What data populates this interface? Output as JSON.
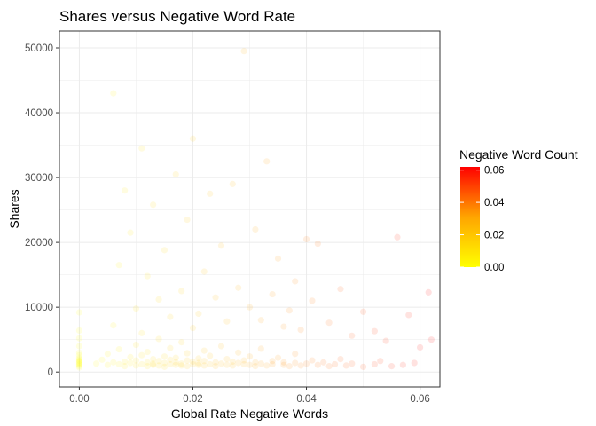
{
  "colors": {
    "gradient_low": "#ffff00",
    "gradient_mid": "#ffa500",
    "gradient_high": "#ff0000",
    "grid": "#ebebeb",
    "panel_border": "#333333"
  },
  "chart_data": {
    "type": "scatter",
    "title": "Shares versus Negative Word Rate",
    "xlabel": "Global Rate Negative Words",
    "ylabel": "Shares",
    "xlim": [
      -0.0035,
      0.0635
    ],
    "ylim": [
      -2300,
      52600
    ],
    "x_ticks": [
      0.0,
      0.02,
      0.04,
      0.06
    ],
    "x_tick_labels": [
      "0.00",
      "0.02",
      "0.04",
      "0.06"
    ],
    "y_ticks": [
      0,
      10000,
      20000,
      30000,
      40000,
      50000
    ],
    "y_tick_labels": [
      "0",
      "10000",
      "20000",
      "30000",
      "40000",
      "50000"
    ],
    "grid": true,
    "point_alpha": 0.12,
    "legend": {
      "title": "Negative Word Count",
      "position": "right",
      "type": "colorbar",
      "range": [
        0,
        0.062
      ],
      "ticks": [
        0.0,
        0.02,
        0.04,
        0.06
      ],
      "tick_labels": [
        "0.00",
        "0.02",
        "0.04",
        "0.06"
      ]
    },
    "points": [
      [
        0.0,
        1200
      ],
      [
        0.0,
        1500
      ],
      [
        0.0,
        1800
      ],
      [
        0.0,
        2200
      ],
      [
        0.0,
        900
      ],
      [
        0.0,
        3000
      ],
      [
        0.0,
        4000
      ],
      [
        0.0,
        2600
      ],
      [
        0.0,
        1100
      ],
      [
        0.0,
        1400
      ],
      [
        0.0,
        700
      ],
      [
        0.0,
        5200
      ],
      [
        0.0,
        6400
      ],
      [
        0.0,
        9200
      ],
      [
        0.0,
        1700
      ],
      [
        0.0,
        2000
      ],
      [
        0.003,
        1300
      ],
      [
        0.004,
        1900
      ],
      [
        0.005,
        1100
      ],
      [
        0.005,
        2800
      ],
      [
        0.006,
        1500
      ],
      [
        0.006,
        7200
      ],
      [
        0.007,
        1200
      ],
      [
        0.007,
        3500
      ],
      [
        0.008,
        1600
      ],
      [
        0.008,
        900
      ],
      [
        0.009,
        2300
      ],
      [
        0.009,
        1400
      ],
      [
        0.01,
        1000
      ],
      [
        0.01,
        4200
      ],
      [
        0.01,
        1800
      ],
      [
        0.011,
        1200
      ],
      [
        0.011,
        2600
      ],
      [
        0.011,
        6000
      ],
      [
        0.012,
        1500
      ],
      [
        0.012,
        900
      ],
      [
        0.012,
        3100
      ],
      [
        0.013,
        1300
      ],
      [
        0.013,
        2000
      ],
      [
        0.013,
        1100
      ],
      [
        0.014,
        1700
      ],
      [
        0.014,
        5100
      ],
      [
        0.014,
        1000
      ],
      [
        0.015,
        1400
      ],
      [
        0.015,
        2400
      ],
      [
        0.015,
        800
      ],
      [
        0.016,
        1200
      ],
      [
        0.016,
        3700
      ],
      [
        0.016,
        1900
      ],
      [
        0.017,
        1100
      ],
      [
        0.017,
        2200
      ],
      [
        0.017,
        1500
      ],
      [
        0.018,
        1000
      ],
      [
        0.018,
        4600
      ],
      [
        0.018,
        1300
      ],
      [
        0.019,
        1800
      ],
      [
        0.019,
        900
      ],
      [
        0.019,
        2900
      ],
      [
        0.02,
        1200
      ],
      [
        0.02,
        1600
      ],
      [
        0.02,
        6800
      ],
      [
        0.021,
        1100
      ],
      [
        0.021,
        2100
      ],
      [
        0.021,
        1400
      ],
      [
        0.022,
        1000
      ],
      [
        0.022,
        3300
      ],
      [
        0.022,
        1700
      ],
      [
        0.023,
        1200
      ],
      [
        0.023,
        2500
      ],
      [
        0.024,
        1500
      ],
      [
        0.024,
        900
      ],
      [
        0.025,
        1300
      ],
      [
        0.025,
        4000
      ],
      [
        0.026,
        1100
      ],
      [
        0.026,
        2000
      ],
      [
        0.027,
        1600
      ],
      [
        0.027,
        1000
      ],
      [
        0.028,
        1400
      ],
      [
        0.028,
        3000
      ],
      [
        0.029,
        1200
      ],
      [
        0.029,
        1800
      ],
      [
        0.03,
        1100
      ],
      [
        0.03,
        2400
      ],
      [
        0.031,
        1500
      ],
      [
        0.031,
        900
      ],
      [
        0.032,
        1300
      ],
      [
        0.032,
        3600
      ],
      [
        0.033,
        1000
      ],
      [
        0.034,
        1700
      ],
      [
        0.034,
        1200
      ],
      [
        0.035,
        2200
      ],
      [
        0.036,
        1100
      ],
      [
        0.036,
        1500
      ],
      [
        0.037,
        900
      ],
      [
        0.038,
        1400
      ],
      [
        0.038,
        2800
      ],
      [
        0.039,
        1000
      ],
      [
        0.04,
        1300
      ],
      [
        0.041,
        1800
      ],
      [
        0.042,
        1100
      ],
      [
        0.043,
        1500
      ],
      [
        0.044,
        900
      ],
      [
        0.045,
        1200
      ],
      [
        0.046,
        2000
      ],
      [
        0.047,
        1000
      ],
      [
        0.048,
        1300
      ],
      [
        0.05,
        800
      ],
      [
        0.052,
        1200
      ],
      [
        0.053,
        1700
      ],
      [
        0.055,
        900
      ],
      [
        0.057,
        1100
      ],
      [
        0.059,
        1400
      ],
      [
        0.006,
        43000
      ],
      [
        0.007,
        16500
      ],
      [
        0.008,
        28000
      ],
      [
        0.009,
        21500
      ],
      [
        0.01,
        9800
      ],
      [
        0.011,
        34500
      ],
      [
        0.012,
        14800
      ],
      [
        0.013,
        25800
      ],
      [
        0.014,
        11200
      ],
      [
        0.015,
        18800
      ],
      [
        0.016,
        8500
      ],
      [
        0.017,
        30500
      ],
      [
        0.018,
        12500
      ],
      [
        0.019,
        23500
      ],
      [
        0.02,
        36000
      ],
      [
        0.021,
        9000
      ],
      [
        0.022,
        15500
      ],
      [
        0.023,
        27500
      ],
      [
        0.024,
        11500
      ],
      [
        0.025,
        19500
      ],
      [
        0.026,
        7800
      ],
      [
        0.027,
        29000
      ],
      [
        0.028,
        13000
      ],
      [
        0.029,
        49500
      ],
      [
        0.03,
        10000
      ],
      [
        0.031,
        22000
      ],
      [
        0.032,
        8000
      ],
      [
        0.033,
        32500
      ],
      [
        0.034,
        12000
      ],
      [
        0.035,
        17500
      ],
      [
        0.036,
        7000
      ],
      [
        0.037,
        9500
      ],
      [
        0.038,
        14000
      ],
      [
        0.039,
        6500
      ],
      [
        0.04,
        20500
      ],
      [
        0.041,
        11000
      ],
      [
        0.042,
        19800
      ],
      [
        0.044,
        7600
      ],
      [
        0.046,
        12800
      ],
      [
        0.048,
        5600
      ],
      [
        0.05,
        9300
      ],
      [
        0.052,
        6300
      ],
      [
        0.054,
        4800
      ],
      [
        0.056,
        20800
      ],
      [
        0.058,
        8800
      ],
      [
        0.06,
        3800
      ],
      [
        0.0615,
        12300
      ],
      [
        0.062,
        5000
      ]
    ]
  }
}
